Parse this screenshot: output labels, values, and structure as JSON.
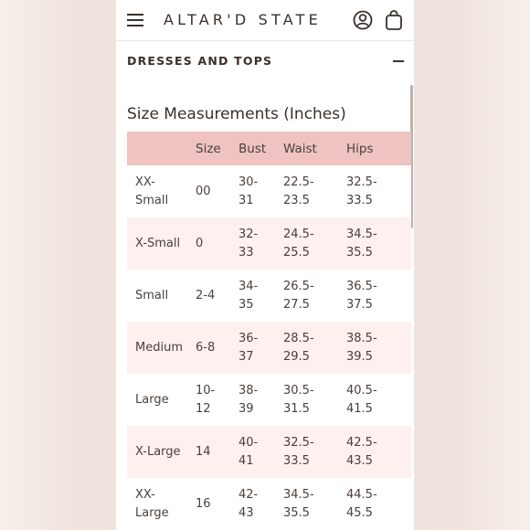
{
  "header": {
    "logo": "ALTAR'D STATE"
  },
  "section": {
    "title": "DRESSES AND TOPS"
  },
  "table": {
    "title": "Size Measurements (Inches)",
    "columns": [
      "",
      "Size",
      "Bust",
      "Waist",
      "Hips"
    ],
    "rows": [
      {
        "label": [
          "XX-",
          "Small"
        ],
        "size": [
          "00"
        ],
        "bust": [
          "30-",
          "31"
        ],
        "waist": [
          "22.5-",
          "23.5"
        ],
        "hips": [
          "32.5-",
          "33.5"
        ]
      },
      {
        "label": [
          "X-Small"
        ],
        "size": [
          "0"
        ],
        "bust": [
          "32-",
          "33"
        ],
        "waist": [
          "24.5-",
          "25.5"
        ],
        "hips": [
          "34.5-",
          "35.5"
        ]
      },
      {
        "label": [
          "Small"
        ],
        "size": [
          "2-4"
        ],
        "bust": [
          "34-",
          "35"
        ],
        "waist": [
          "26.5-",
          "27.5"
        ],
        "hips": [
          "36.5-",
          "37.5"
        ]
      },
      {
        "label": [
          "Medium"
        ],
        "size": [
          "6-8"
        ],
        "bust": [
          "36-",
          "37"
        ],
        "waist": [
          "28.5-",
          "29.5"
        ],
        "hips": [
          "38.5-",
          "39.5"
        ]
      },
      {
        "label": [
          "Large"
        ],
        "size": [
          "10-",
          "12"
        ],
        "bust": [
          "38-",
          "39"
        ],
        "waist": [
          "30.5-",
          "31.5"
        ],
        "hips": [
          "40.5-",
          "41.5"
        ]
      },
      {
        "label": [
          "X-Large"
        ],
        "size": [
          "14"
        ],
        "bust": [
          "40-",
          "41"
        ],
        "waist": [
          "32.5-",
          "33.5"
        ],
        "hips": [
          "42.5-",
          "43.5"
        ]
      },
      {
        "label": [
          "XX-",
          "Large"
        ],
        "size": [
          "16"
        ],
        "bust": [
          "42-",
          "43"
        ],
        "waist": [
          "34.5-",
          "35.5"
        ],
        "hips": [
          "44.5-",
          "45.5"
        ]
      }
    ]
  },
  "colors": {
    "header_row": "#eec3c2",
    "stripe_row": "#fdf0ee",
    "text": "#3a302c"
  },
  "icons": {
    "menu": "hamburger-menu-icon",
    "account": "account-icon",
    "bag": "shopping-bag-icon",
    "collapse": "minus-icon"
  }
}
